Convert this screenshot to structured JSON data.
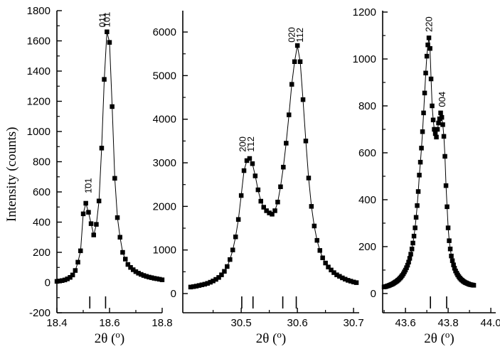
{
  "chart_data": {
    "type": "line",
    "marker": "square",
    "color": "#000000",
    "background": "#ffffff",
    "ylabel": "Intensity (counts)",
    "panels": [
      {
        "name": "left",
        "xlabel": {
          "main": "2θ (",
          "sup": "o",
          "end": ")"
        },
        "xlim": [
          18.4,
          18.8
        ],
        "ylim": [
          -200,
          1800
        ],
        "x_major": [
          {
            "v": 18.4,
            "label": "18.4"
          },
          {
            "v": 18.6,
            "label": "18.6"
          },
          {
            "v": 18.8,
            "label": "18.8"
          }
        ],
        "x_minor": [
          18.5,
          18.7
        ],
        "y_major": [
          {
            "v": 1800,
            "label": "1800"
          },
          {
            "v": 1600,
            "label": "1600"
          },
          {
            "v": 1400,
            "label": "1400"
          },
          {
            "v": 1200,
            "label": "1200"
          },
          {
            "v": 1000,
            "label": "1000"
          },
          {
            "v": 800,
            "label": "800"
          },
          {
            "v": 600,
            "label": "600"
          },
          {
            "v": 400,
            "label": "400"
          },
          {
            "v": 200,
            "label": "200"
          },
          {
            "v": 0,
            "label": "0"
          },
          {
            "v": -200,
            "label": "-200"
          }
        ],
        "y_minor": [
          1700,
          1500,
          1300,
          1100,
          900,
          700,
          500,
          300,
          100,
          -100
        ],
        "ref_marks": [
          18.525,
          18.585
        ],
        "peak_labels": [
          {
            "text": "1̄01",
            "x": 18.518,
            "y": 590
          },
          {
            "text": "011",
            "x": 18.572,
            "y": 1690
          },
          {
            "text": "101",
            "x": 18.588,
            "y": 1690
          }
        ],
        "x_start": 18.4,
        "x_step": 0.01,
        "values": [
          8,
          10,
          13,
          17,
          24,
          34,
          50,
          80,
          135,
          210,
          455,
          525,
          465,
          390,
          315,
          385,
          540,
          890,
          1345,
          1660,
          1590,
          1165,
          690,
          430,
          300,
          200,
          155,
          120,
          100,
          85,
          72,
          62,
          54,
          47,
          41,
          36,
          32,
          28,
          25,
          22,
          18
        ]
      },
      {
        "name": "middle",
        "xlabel": {
          "main": "2θ (",
          "sup": "o",
          "end": ")"
        },
        "xlim": [
          30.396,
          30.71
        ],
        "ylim": [
          -440,
          6490
        ],
        "x_major": [
          {
            "v": 30.5,
            "label": "30.5"
          },
          {
            "v": 30.6,
            "label": "30.6"
          },
          {
            "v": 30.7,
            "label": "30.7"
          }
        ],
        "x_minor": [
          30.45,
          30.55,
          30.65
        ],
        "y_major": [
          {
            "v": 6000,
            "label": "6000"
          },
          {
            "v": 5000,
            "label": "5000"
          },
          {
            "v": 4000,
            "label": "4000"
          },
          {
            "v": 3000,
            "label": "3000"
          },
          {
            "v": 2000,
            "label": "2000"
          },
          {
            "v": 1000,
            "label": "1000"
          },
          {
            "v": 0,
            "label": "0"
          }
        ],
        "y_minor": [
          5500,
          4500,
          3500,
          2500,
          1500,
          500
        ],
        "ref_marks": [
          30.501,
          30.521,
          30.574,
          30.598
        ],
        "peak_labels": [
          {
            "text": "200",
            "x": 30.502,
            "y": 3250
          },
          {
            "text": "1̄12",
            "x": 30.5165,
            "y": 3250
          },
          {
            "text": "020",
            "x": 30.589,
            "y": 5760
          },
          {
            "text": "112",
            "x": 30.6035,
            "y": 5760
          }
        ],
        "x_start": 30.41,
        "x_step": 0.005,
        "values": [
          150,
          160,
          170,
          185,
          200,
          215,
          235,
          260,
          290,
          325,
          370,
          430,
          510,
          620,
          780,
          1000,
          1300,
          1700,
          2250,
          2820,
          3050,
          3100,
          2980,
          2700,
          2380,
          2120,
          1980,
          1900,
          1850,
          1820,
          1900,
          2100,
          2450,
          2900,
          3450,
          4100,
          4800,
          5320,
          5690,
          5320,
          4450,
          3500,
          2650,
          2000,
          1550,
          1220,
          990,
          820,
          700,
          610,
          540,
          480,
          430,
          395,
          360,
          330,
          305,
          285,
          265,
          250
        ]
      },
      {
        "name": "right",
        "xlabel": {
          "main": "2θ (",
          "sup": "o",
          "end": ")"
        },
        "xlim": [
          43.493,
          44.023
        ],
        "ylim": [
          -82,
          1206
        ],
        "x_major": [
          {
            "v": 43.6,
            "label": "43.6"
          },
          {
            "v": 43.8,
            "label": "43.8"
          },
          {
            "v": 44.0,
            "label": "44.0"
          }
        ],
        "x_minor": [
          43.5,
          43.7,
          43.9
        ],
        "y_major": [
          {
            "v": 1200,
            "label": "1200"
          },
          {
            "v": 1000,
            "label": "1000"
          },
          {
            "v": 800,
            "label": "800"
          },
          {
            "v": 600,
            "label": "600"
          },
          {
            "v": 400,
            "label": "400"
          },
          {
            "v": 200,
            "label": "200"
          },
          {
            "v": 0,
            "label": "0"
          }
        ],
        "y_minor": [
          1100,
          900,
          700,
          500,
          300,
          100
        ],
        "ref_marks": [
          43.717,
          43.793
        ],
        "peak_labels": [
          {
            "text": "220",
            "x": 43.708,
            "y": 1115
          },
          {
            "text": "004",
            "x": 43.77,
            "y": 795
          }
        ],
        "x_start": 43.5,
        "x_step": 0.005,
        "values": [
          28,
          29,
          30,
          32,
          33,
          35,
          37,
          39,
          41,
          44,
          47,
          50,
          53,
          57,
          61,
          66,
          71,
          77,
          84,
          92,
          100,
          110,
          121,
          134,
          150,
          168,
          190,
          215,
          245,
          280,
          325,
          375,
          435,
          505,
          560,
          620,
          690,
          770,
          855,
          940,
          1012,
          1060,
          1090,
          1045,
          915,
          800,
          740,
          700,
          682,
          667,
          700,
          727,
          745,
          770,
          751,
          720,
          670,
          585,
          460,
          370,
          280,
          225,
          190,
          160,
          140,
          122,
          108,
          96,
          87,
          79,
          72,
          66,
          61,
          57,
          53,
          50,
          47,
          45,
          43,
          41,
          39,
          38,
          37,
          36,
          35
        ]
      }
    ]
  }
}
